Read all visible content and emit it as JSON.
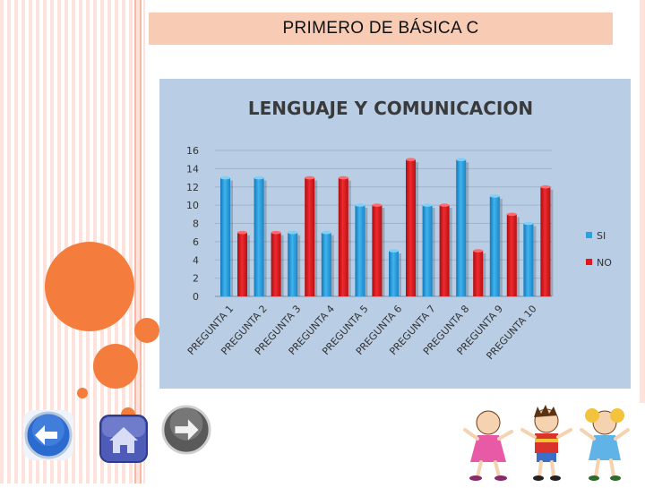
{
  "slide": {
    "title": "PRIMERO DE BÁSICA C"
  },
  "nav": {
    "back_icon": "left-arrow-icon",
    "home_icon": "home-icon",
    "next_icon": "right-arrow-icon"
  },
  "chart_data": {
    "type": "bar",
    "title": "LENGUAJE Y COMUNICACION",
    "xlabel": "",
    "ylabel": "",
    "ylim": [
      0,
      16
    ],
    "yticks": [
      "0",
      "2",
      "4",
      "6",
      "8",
      "10",
      "12",
      "14",
      "16"
    ],
    "categories": [
      "PREGUNTA 1",
      "PREGUNTA 2",
      "PREGUNTA 3",
      "PREGUNTA 4",
      "PREGUNTA 5",
      "PREGUNTA 6",
      "PREGUNTA 7",
      "PREGUNTA 8",
      "PREGUNTA 9",
      "PREGUNTA 10"
    ],
    "series": [
      {
        "name": "SI",
        "color": "#2aa3de",
        "values": [
          13,
          13,
          7,
          7,
          10,
          5,
          10,
          15,
          11,
          8
        ]
      },
      {
        "name": "NO",
        "color": "#e3161c",
        "values": [
          7,
          7,
          13,
          13,
          10,
          15,
          10,
          5,
          9,
          12
        ]
      }
    ],
    "grid": true,
    "legend": "right",
    "background": "#b9cde4"
  }
}
